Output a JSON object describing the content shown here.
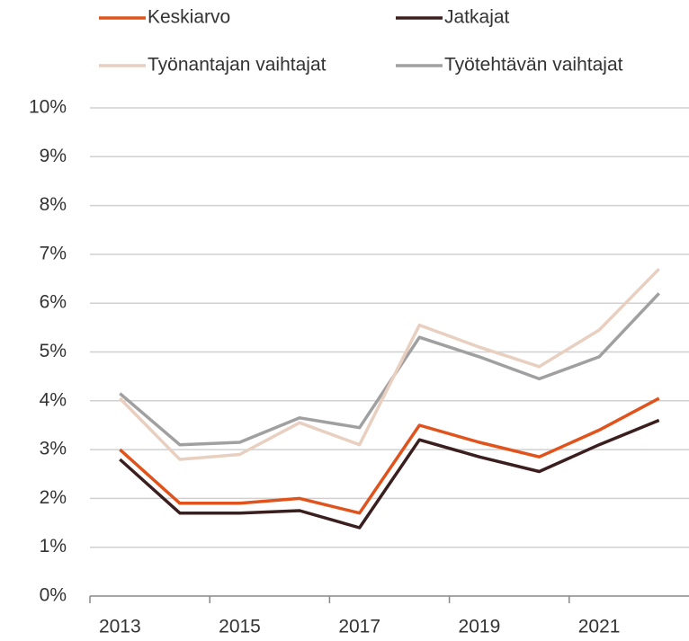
{
  "chart_data": {
    "type": "line",
    "categories": [
      "2013",
      null,
      "2015",
      null,
      "2017",
      null,
      "2019",
      null,
      "2021",
      null
    ],
    "series": [
      {
        "name": "Keskiarvo",
        "color": "#e0531c",
        "values": [
          3.0,
          1.9,
          1.9,
          2.0,
          1.7,
          3.5,
          3.15,
          2.85,
          3.4,
          4.05
        ]
      },
      {
        "name": "Jatkajat",
        "color": "#3b1f1f",
        "values": [
          2.8,
          1.7,
          1.7,
          1.75,
          1.4,
          3.2,
          2.85,
          2.55,
          3.1,
          3.6
        ]
      },
      {
        "name": "Työnantajan vaihtajat",
        "color": "#e8cfc0",
        "values": [
          4.05,
          2.8,
          2.9,
          3.55,
          3.1,
          5.55,
          5.1,
          4.7,
          5.45,
          6.7
        ]
      },
      {
        "name": "Työtehtävän vaihtajat",
        "color": "#a0a0a0",
        "values": [
          4.15,
          3.1,
          3.15,
          3.65,
          3.45,
          5.3,
          4.9,
          4.45,
          4.9,
          6.2
        ]
      }
    ],
    "ylim": [
      0,
      10
    ],
    "yticks": [
      {
        "value": 0,
        "label": "0%"
      },
      {
        "value": 1,
        "label": "1%"
      },
      {
        "value": 2,
        "label": "2%"
      },
      {
        "value": 3,
        "label": "3%"
      },
      {
        "value": 4,
        "label": "4%"
      },
      {
        "value": 5,
        "label": "5%"
      },
      {
        "value": 6,
        "label": "6%"
      },
      {
        "value": 7,
        "label": "7%"
      },
      {
        "value": 8,
        "label": "8%"
      },
      {
        "value": 9,
        "label": "9%"
      },
      {
        "value": 10,
        "label": "10%"
      }
    ],
    "grid": true
  }
}
